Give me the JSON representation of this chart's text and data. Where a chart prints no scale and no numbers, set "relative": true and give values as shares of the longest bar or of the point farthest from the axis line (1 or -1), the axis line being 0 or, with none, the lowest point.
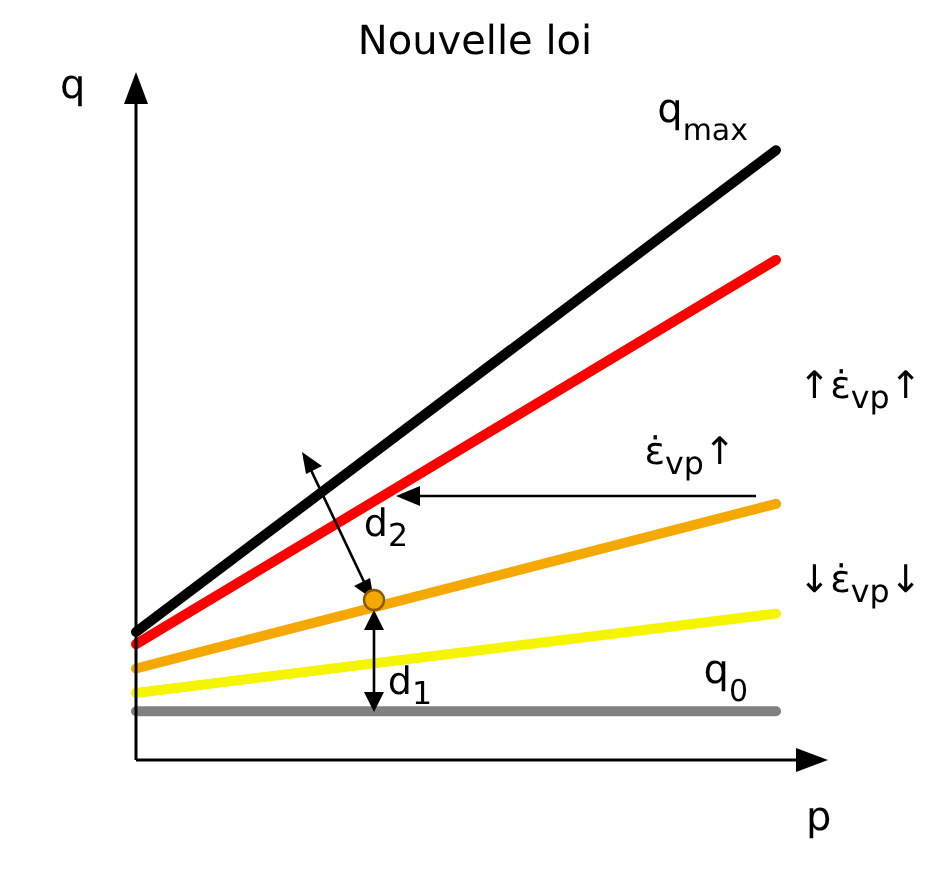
{
  "chart_data": {
    "type": "line",
    "title": "Nouvelle loi",
    "xlabel": "p",
    "ylabel": "q",
    "relative": true,
    "categories": [
      null,
      null
    ],
    "marker": "none",
    "line_style": "solid",
    "series": [
      {
        "name": "q$_{max}$",
        "color": "#000000",
        "values": [
          0.21,
          1
        ]
      },
      {
        "color": "#ff0000",
        "values": [
          0.19,
          0.82
        ]
      },
      {
        "color": "#f5a800",
        "values": [
          0.15,
          0.42
        ]
      },
      {
        "color": "#f5f500",
        "values": [
          0.11,
          0.24
        ]
      },
      {
        "name": "q$_{0}$",
        "color": "#808080",
        "values": [
          0.08,
          0.08
        ]
      }
    ],
    "annotations": [
      "↑ε̇$_{vp}$↑",
      "ε̇$_{vp}$↑",
      "d$_{2}$",
      "↓ε̇$_{vp}$↓",
      "d$_{1}$"
    ]
  }
}
